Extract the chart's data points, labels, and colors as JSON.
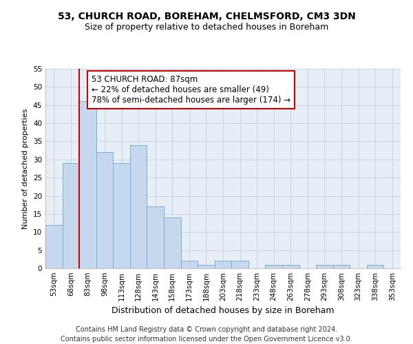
{
  "title1": "53, CHURCH ROAD, BOREHAM, CHELMSFORD, CM3 3DN",
  "title2": "Size of property relative to detached houses in Boreham",
  "xlabel": "Distribution of detached houses by size in Boreham",
  "ylabel": "Number of detached properties",
  "footer1": "Contains HM Land Registry data © Crown copyright and database right 2024.",
  "footer2": "Contains public sector information licensed under the Open Government Licence v3.0.",
  "bins": [
    "53sqm",
    "68sqm",
    "83sqm",
    "98sqm",
    "113sqm",
    "128sqm",
    "143sqm",
    "158sqm",
    "173sqm",
    "188sqm",
    "203sqm",
    "218sqm",
    "233sqm",
    "248sqm",
    "263sqm",
    "278sqm",
    "293sqm",
    "308sqm",
    "323sqm",
    "338sqm",
    "353sqm"
  ],
  "values": [
    12,
    29,
    46,
    32,
    29,
    34,
    17,
    14,
    2,
    1,
    2,
    2,
    0,
    1,
    1,
    0,
    1,
    1,
    0,
    1,
    0
  ],
  "bar_color": "#c5d8ee",
  "bar_edge_color": "#7aadd4",
  "bar_linewidth": 0.7,
  "grid_color": "#c8d4e4",
  "bg_color": "#e8eef6",
  "red_line_color": "#cc0000",
  "red_line_x": 2,
  "annotation_text1": "53 CHURCH ROAD: 87sqm",
  "annotation_text2": "← 22% of detached houses are smaller (49)",
  "annotation_text3": "78% of semi-detached houses are larger (174) →",
  "annotation_box_color": "white",
  "annotation_box_edge": "#cc0000",
  "ylim": [
    0,
    55
  ],
  "yticks": [
    0,
    5,
    10,
    15,
    20,
    25,
    30,
    35,
    40,
    45,
    50,
    55
  ],
  "title1_fontsize": 10,
  "title2_fontsize": 9,
  "ylabel_fontsize": 8,
  "xlabel_fontsize": 9,
  "tick_fontsize": 7.5,
  "footer_fontsize": 7,
  "annot_fontsize": 8.5
}
